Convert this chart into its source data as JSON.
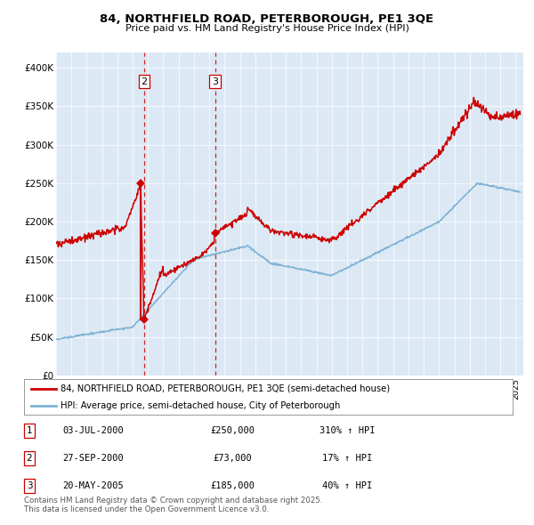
{
  "title": "84, NORTHFIELD ROAD, PETERBOROUGH, PE1 3QE",
  "subtitle": "Price paid vs. HM Land Registry's House Price Index (HPI)",
  "bg_color": "#dce9f5",
  "fig_bg_color": "#ffffff",
  "red_line_color": "#cc0000",
  "blue_line_color": "#7fb3d3",
  "ylim": [
    0,
    420000
  ],
  "yticks": [
    0,
    50000,
    100000,
    150000,
    200000,
    250000,
    300000,
    350000,
    400000
  ],
  "ytick_labels": [
    "£0",
    "£50K",
    "£100K",
    "£150K",
    "£200K",
    "£250K",
    "£300K",
    "£350K",
    "£400K"
  ],
  "t1": 2000.5,
  "t2": 2000.75,
  "t3": 2005.38,
  "p1": 250000,
  "p2": 73000,
  "p3": 185000,
  "transactions": [
    {
      "num": 2,
      "date_num": 2000.75,
      "label": "2"
    },
    {
      "num": 3,
      "date_num": 2005.38,
      "label": "3"
    }
  ],
  "legend_line1": "84, NORTHFIELD ROAD, PETERBOROUGH, PE1 3QE (semi-detached house)",
  "legend_line2": "HPI: Average price, semi-detached house, City of Peterborough",
  "table_rows": [
    {
      "num": "1",
      "date": "03-JUL-2000",
      "price": "£250,000",
      "hpi": "310% ↑ HPI"
    },
    {
      "num": "2",
      "date": "27-SEP-2000",
      "price": "£73,000",
      "hpi": "17% ↑ HPI"
    },
    {
      "num": "3",
      "date": "20-MAY-2005",
      "price": "£185,000",
      "hpi": "40% ↑ HPI"
    }
  ],
  "footnote": "Contains HM Land Registry data © Crown copyright and database right 2025.\nThis data is licensed under the Open Government Licence v3.0.",
  "xmin": 1995.0,
  "xmax": 2025.5
}
